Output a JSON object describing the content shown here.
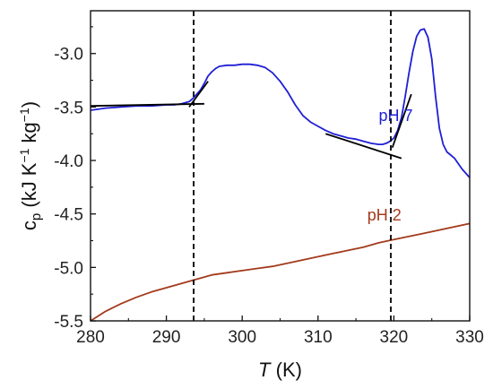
{
  "chart_data": {
    "type": "line",
    "xlabel": {
      "symbol": "T",
      "unit": " (K)"
    },
    "ylabel": {
      "base": "c",
      "sub": "p",
      "p1": " (kJ K",
      "sup1": "−1",
      "p2": " kg",
      "sup2": "−1",
      "p3": ")"
    },
    "xlim": [
      280,
      330
    ],
    "ylim": [
      -5.5,
      -2.6
    ],
    "xticks": [
      280,
      290,
      300,
      310,
      320,
      330
    ],
    "yticks": [
      -5.5,
      -5.0,
      -4.5,
      -4.0,
      -3.5,
      -3.0
    ],
    "xtick_labels": [
      "280",
      "290",
      "300",
      "310",
      "320",
      "330"
    ],
    "ytick_labels": [
      "-5.5",
      "-5.0",
      "-4.5",
      "-4.0",
      "-3.5",
      "-3.0"
    ],
    "series": [
      {
        "name": "pH 7",
        "color": "#1f1fd6",
        "x": [
          280,
          282,
          284,
          286,
          288,
          290,
          291,
          292,
          293,
          293.5,
          294,
          294.5,
          295,
          295.5,
          296,
          296.5,
          297,
          298,
          299,
          300,
          301,
          302,
          303,
          304,
          305,
          306,
          307,
          308,
          309,
          310,
          311,
          312,
          313,
          314,
          315,
          316,
          317,
          318,
          318.5,
          319,
          319.5,
          320,
          320.5,
          321,
          321.5,
          322,
          322.5,
          323,
          323.5,
          324,
          324.5,
          325,
          325.5,
          326,
          326.5,
          327,
          328,
          329,
          330
        ],
        "y": [
          -3.53,
          -3.51,
          -3.5,
          -3.49,
          -3.49,
          -3.48,
          -3.48,
          -3.47,
          -3.45,
          -3.42,
          -3.38,
          -3.34,
          -3.28,
          -3.21,
          -3.17,
          -3.14,
          -3.12,
          -3.11,
          -3.11,
          -3.1,
          -3.1,
          -3.11,
          -3.13,
          -3.18,
          -3.26,
          -3.36,
          -3.48,
          -3.58,
          -3.64,
          -3.68,
          -3.72,
          -3.75,
          -3.77,
          -3.79,
          -3.8,
          -3.82,
          -3.84,
          -3.85,
          -3.85,
          -3.84,
          -3.82,
          -3.79,
          -3.72,
          -3.6,
          -3.4,
          -3.18,
          -2.98,
          -2.84,
          -2.78,
          -2.77,
          -2.85,
          -3.05,
          -3.4,
          -3.7,
          -3.85,
          -3.92,
          -3.98,
          -4.08,
          -4.16
        ]
      },
      {
        "name": "pH 2",
        "color": "#a33a1c",
        "x": [
          280,
          282,
          284,
          286,
          288,
          290,
          292,
          294,
          296,
          298,
          300,
          302,
          304,
          306,
          308,
          310,
          312,
          314,
          316,
          318,
          320,
          322,
          324,
          326,
          328,
          330
        ],
        "y": [
          -5.5,
          -5.41,
          -5.34,
          -5.28,
          -5.23,
          -5.19,
          -5.15,
          -5.11,
          -5.07,
          -5.05,
          -5.03,
          -5.01,
          -4.99,
          -4.96,
          -4.93,
          -4.9,
          -4.87,
          -4.84,
          -4.81,
          -4.77,
          -4.74,
          -4.71,
          -4.68,
          -4.65,
          -4.62,
          -4.59
        ]
      }
    ],
    "baselines": [
      {
        "color": "#000000",
        "x": [
          280,
          295
        ],
        "y": [
          -3.49,
          -3.47
        ]
      },
      {
        "color": "#000000",
        "x": [
          293,
          295.5
        ],
        "y": [
          -3.5,
          -3.26
        ]
      },
      {
        "color": "#000000",
        "x": [
          311,
          321
        ],
        "y": [
          -3.75,
          -3.98
        ]
      },
      {
        "color": "#000000",
        "x": [
          319.8,
          322.3
        ],
        "y": [
          -3.88,
          -3.38
        ]
      }
    ],
    "vlines": [
      {
        "x": 293.6,
        "style": "dashed",
        "color": "#000000"
      },
      {
        "x": 319.6,
        "style": "dashed",
        "color": "#000000"
      }
    ],
    "annotations": [
      {
        "text": "pH 7",
        "color": "#1f1fd6",
        "x": 318,
        "y": -3.63
      },
      {
        "text": "pH 2",
        "color": "#a33a1c",
        "x": 316.5,
        "y": -4.56
      }
    ],
    "grid": false,
    "legend": "none"
  }
}
